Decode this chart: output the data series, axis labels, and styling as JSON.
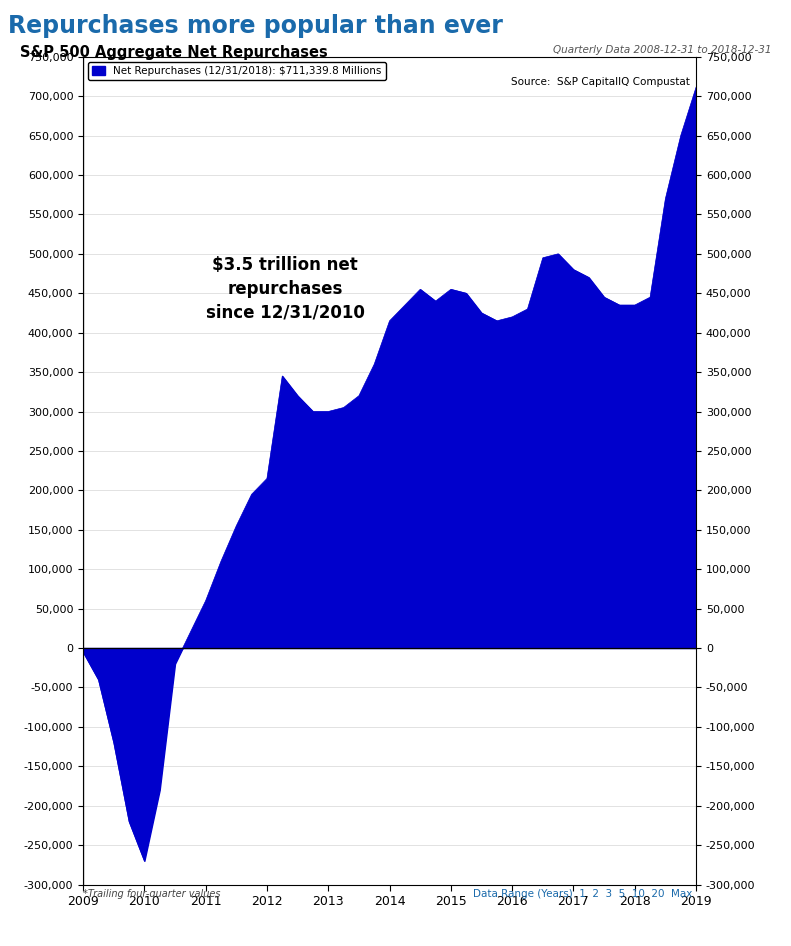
{
  "title_main": "Repurchases more popular than ever",
  "title_sub": "S&P 500 Aggregate Net Repurchases",
  "title_right": "Quarterly Data 2008-12-31 to 2018-12-31",
  "source_text": "Source:  S&P CapitalIQ Compustat",
  "legend_text": "Net Repurchases (12/31/2018): $711,339.8 Millions",
  "annotation": "$3.5 trillion net\nrepurchases\nsince 12/31/2010",
  "footnote": "*Trailing four-quarter values",
  "fill_color": "#0000cc",
  "title_main_color": "#1a6aab",
  "background_color": "#ffffff",
  "ylim": [
    -300000,
    750000
  ],
  "years": [
    2009,
    2010,
    2011,
    2012,
    2013,
    2014,
    2015,
    2016,
    2017,
    2018,
    2019
  ],
  "x_values": [
    2009.0,
    2009.25,
    2009.5,
    2009.75,
    2010.0,
    2010.25,
    2010.5,
    2010.75,
    2011.0,
    2011.25,
    2011.5,
    2011.75,
    2012.0,
    2012.25,
    2012.5,
    2012.75,
    2013.0,
    2013.25,
    2013.5,
    2013.75,
    2014.0,
    2014.25,
    2014.5,
    2014.75,
    2015.0,
    2015.25,
    2015.5,
    2015.75,
    2016.0,
    2016.25,
    2016.5,
    2016.75,
    2017.0,
    2017.25,
    2017.5,
    2017.75,
    2018.0,
    2018.25,
    2018.5,
    2018.75,
    2019.0
  ],
  "y_values": [
    -5000,
    -40000,
    -120000,
    -220000,
    -270000,
    -180000,
    -20000,
    20000,
    60000,
    110000,
    155000,
    195000,
    215000,
    345000,
    320000,
    300000,
    300000,
    305000,
    320000,
    360000,
    415000,
    435000,
    455000,
    440000,
    455000,
    450000,
    425000,
    415000,
    420000,
    430000,
    495000,
    500000,
    480000,
    470000,
    445000,
    435000,
    435000,
    445000,
    570000,
    650000,
    711340
  ]
}
